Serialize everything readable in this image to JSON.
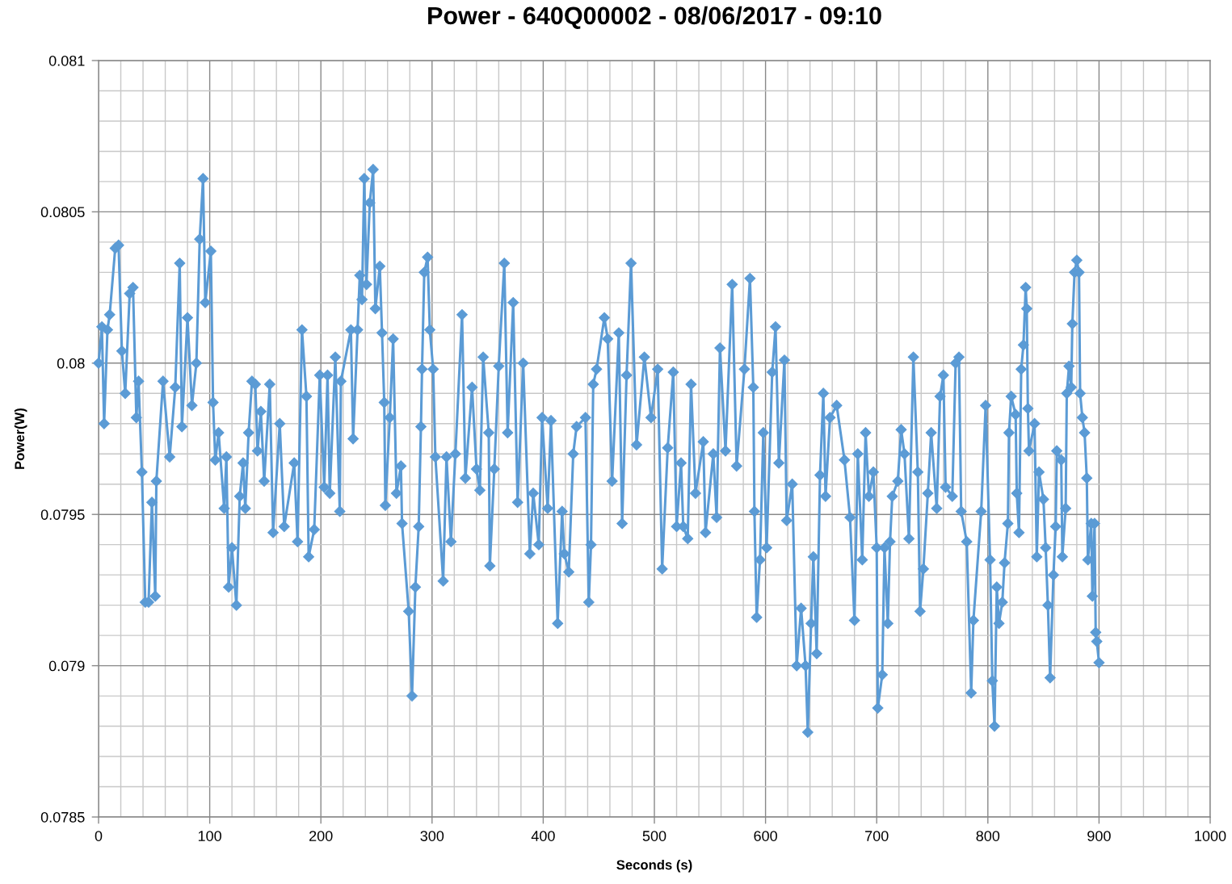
{
  "chart_data": {
    "type": "line",
    "title": "Power - 640Q00002 - 08/06/2017 - 09:10",
    "xlabel": "Seconds (s)",
    "ylabel": "Power(W)",
    "x": [
      0,
      3,
      5,
      8,
      10,
      15,
      18,
      21,
      24,
      28,
      31,
      34,
      36,
      39,
      42,
      45,
      48,
      51,
      52,
      58,
      64,
      69,
      73,
      75,
      80,
      84,
      88,
      91,
      94,
      96,
      101,
      103,
      105,
      108,
      113,
      115,
      117,
      120,
      124,
      127,
      130,
      132,
      135,
      138,
      141,
      143,
      146,
      149,
      154,
      157,
      163,
      167,
      176,
      179,
      183,
      187,
      189,
      194,
      199,
      203,
      206,
      208,
      213,
      217,
      218,
      227,
      229,
      233,
      235,
      237,
      239,
      241,
      244,
      247,
      249,
      253,
      255,
      257,
      258,
      262,
      265,
      268,
      272,
      273,
      279,
      282,
      285,
      288,
      290,
      291,
      293,
      296,
      298,
      301,
      303,
      310,
      313,
      317,
      321,
      327,
      330,
      336,
      340,
      343,
      346,
      351,
      352,
      356,
      360,
      365,
      368,
      373,
      377,
      382,
      388,
      391,
      396,
      399,
      404,
      407,
      413,
      417,
      419,
      423,
      427,
      430,
      438,
      441,
      443,
      445,
      448,
      455,
      458,
      462,
      468,
      471,
      475,
      479,
      484,
      491,
      497,
      503,
      507,
      512,
      517,
      520,
      524,
      526,
      530,
      533,
      537,
      544,
      546,
      553,
      556,
      559,
      564,
      570,
      574,
      581,
      586,
      589,
      590,
      592,
      595,
      598,
      601,
      606,
      609,
      612,
      617,
      619,
      624,
      628,
      632,
      636,
      638,
      641,
      643,
      646,
      649,
      652,
      654,
      658,
      664,
      671,
      676,
      680,
      683,
      687,
      690,
      693,
      697,
      700,
      701,
      705,
      707,
      710,
      712,
      714,
      719,
      722,
      725,
      729,
      733,
      737,
      739,
      742,
      746,
      749,
      754,
      757,
      760,
      762,
      768,
      771,
      774,
      776,
      781,
      785,
      787,
      794,
      798,
      802,
      804,
      806,
      808,
      810,
      813,
      815,
      818,
      819,
      821,
      825,
      826,
      828,
      830,
      832,
      834,
      835,
      836,
      837,
      842,
      844,
      846,
      850,
      852,
      854,
      856,
      859,
      861,
      862,
      866,
      867,
      870,
      871,
      873,
      875,
      876,
      878,
      880,
      882,
      883,
      885,
      887,
      889,
      890,
      893,
      894,
      896,
      897,
      898,
      900
    ],
    "series": [
      {
        "color": "#5b9bd5",
        "marker": "diamond",
        "line_style": "solid",
        "values": [
          0.08,
          0.08012,
          0.0798,
          0.08011,
          0.08016,
          0.08038,
          0.08039,
          0.08004,
          0.0799,
          0.08023,
          0.08025,
          0.07982,
          0.07994,
          0.07964,
          0.07921,
          0.07921,
          0.07954,
          0.07923,
          0.07961,
          0.07994,
          0.07969,
          0.07992,
          0.08033,
          0.07979,
          0.08015,
          0.07986,
          0.08,
          0.08041,
          0.08061,
          0.0802,
          0.08037,
          0.07987,
          0.07968,
          0.07977,
          0.07952,
          0.07969,
          0.07926,
          0.07939,
          0.0792,
          0.07956,
          0.07967,
          0.07952,
          0.07977,
          0.07994,
          0.07993,
          0.07971,
          0.07984,
          0.07961,
          0.07993,
          0.07944,
          0.0798,
          0.07946,
          0.07967,
          0.07941,
          0.08011,
          0.07989,
          0.07936,
          0.07945,
          0.07996,
          0.07959,
          0.07996,
          0.07957,
          0.08002,
          0.07951,
          0.07994,
          0.08011,
          0.07975,
          0.08011,
          0.08029,
          0.08021,
          0.08061,
          0.08026,
          0.08053,
          0.08064,
          0.08018,
          0.08032,
          0.0801,
          0.07987,
          0.07953,
          0.07982,
          0.08008,
          0.07957,
          0.07966,
          0.07947,
          0.07918,
          0.0789,
          0.07926,
          0.07946,
          0.07979,
          0.07998,
          0.0803,
          0.08035,
          0.08011,
          0.07998,
          0.07969,
          0.07928,
          0.07969,
          0.07941,
          0.0797,
          0.08016,
          0.07962,
          0.07992,
          0.07965,
          0.07958,
          0.08002,
          0.07977,
          0.07933,
          0.07965,
          0.07999,
          0.08033,
          0.07977,
          0.0802,
          0.07954,
          0.08,
          0.07937,
          0.07957,
          0.0794,
          0.07982,
          0.07952,
          0.07981,
          0.07914,
          0.07951,
          0.07937,
          0.07931,
          0.0797,
          0.07979,
          0.07982,
          0.07921,
          0.0794,
          0.07993,
          0.07998,
          0.08015,
          0.08008,
          0.07961,
          0.0801,
          0.07947,
          0.07996,
          0.08033,
          0.07973,
          0.08002,
          0.07982,
          0.07998,
          0.07932,
          0.07972,
          0.07997,
          0.07946,
          0.07967,
          0.07946,
          0.07942,
          0.07993,
          0.07957,
          0.07974,
          0.07944,
          0.0797,
          0.07949,
          0.08005,
          0.07971,
          0.08026,
          0.07966,
          0.07998,
          0.08028,
          0.07992,
          0.07951,
          0.07916,
          0.07935,
          0.07977,
          0.07939,
          0.07997,
          0.08012,
          0.07967,
          0.08001,
          0.07948,
          0.0796,
          0.079,
          0.07919,
          0.079,
          0.07878,
          0.07914,
          0.07936,
          0.07904,
          0.07963,
          0.0799,
          0.07956,
          0.07982,
          0.07986,
          0.07968,
          0.07949,
          0.07915,
          0.0797,
          0.07935,
          0.07977,
          0.07956,
          0.07964,
          0.07939,
          0.07886,
          0.07897,
          0.07939,
          0.07914,
          0.07941,
          0.07956,
          0.07961,
          0.07978,
          0.0797,
          0.07942,
          0.08002,
          0.07964,
          0.07918,
          0.07932,
          0.07957,
          0.07977,
          0.07952,
          0.07989,
          0.07996,
          0.07959,
          0.07956,
          0.08,
          0.08002,
          0.07951,
          0.07941,
          0.07891,
          0.07915,
          0.07951,
          0.07986,
          0.07935,
          0.07895,
          0.0788,
          0.07926,
          0.07914,
          0.07921,
          0.07934,
          0.07947,
          0.07977,
          0.07989,
          0.07983,
          0.07957,
          0.07944,
          0.07998,
          0.08006,
          0.08025,
          0.08018,
          0.07985,
          0.07971,
          0.0798,
          0.07936,
          0.07964,
          0.07955,
          0.07939,
          0.0792,
          0.07896,
          0.0793,
          0.07946,
          0.07971,
          0.07968,
          0.07936,
          0.07952,
          0.0799,
          0.07999,
          0.07992,
          0.08013,
          0.0803,
          0.08034,
          0.0803,
          0.0799,
          0.07982,
          0.07977,
          0.07962,
          0.07935,
          0.07947,
          0.07923,
          0.07947,
          0.07911,
          0.07908,
          0.07901
        ]
      }
    ],
    "xlim": [
      0,
      1000
    ],
    "xticks": [
      0,
      {
        "value": 20,
        "label": null
      },
      {
        "value": 40,
        "label": null
      },
      {
        "value": 60,
        "label": null
      },
      {
        "value": 80,
        "label": null
      },
      100,
      {
        "value": 120,
        "label": null
      },
      {
        "value": 140,
        "label": null
      },
      {
        "value": 160,
        "label": null
      },
      {
        "value": 180,
        "label": null
      },
      200,
      {
        "value": 220,
        "label": null
      },
      {
        "value": 240,
        "label": null
      },
      {
        "value": 260,
        "label": null
      },
      {
        "value": 280,
        "label": null
      },
      300,
      {
        "value": 320,
        "label": null
      },
      {
        "value": 340,
        "label": null
      },
      {
        "value": 360,
        "label": null
      },
      {
        "value": 380,
        "label": null
      },
      400,
      {
        "value": 420,
        "label": null
      },
      {
        "value": 440,
        "label": null
      },
      {
        "value": 460,
        "label": null
      },
      {
        "value": 480,
        "label": null
      },
      500,
      {
        "value": 520,
        "label": null
      },
      {
        "value": 540,
        "label": null
      },
      {
        "value": 560,
        "label": null
      },
      {
        "value": 580,
        "label": null
      },
      600,
      {
        "value": 620,
        "label": null
      },
      {
        "value": 640,
        "label": null
      },
      {
        "value": 660,
        "label": null
      },
      {
        "value": 680,
        "label": null
      },
      700,
      {
        "value": 720,
        "label": null
      },
      {
        "value": 740,
        "label": null
      },
      {
        "value": 760,
        "label": null
      },
      {
        "value": 780,
        "label": null
      },
      800,
      {
        "value": 820,
        "label": null
      },
      {
        "value": 840,
        "label": null
      },
      {
        "value": 860,
        "label": null
      },
      {
        "value": 880,
        "label": null
      },
      900,
      {
        "value": 920,
        "label": null
      },
      {
        "value": 940,
        "label": null
      },
      {
        "value": 960,
        "label": null
      },
      {
        "value": 980,
        "label": null
      },
      1000
    ],
    "ylim": [
      0.0785,
      0.081
    ],
    "yticks": [
      0.0785,
      {
        "value": 0.0786,
        "label": null
      },
      {
        "value": 0.0787,
        "label": null
      },
      {
        "value": 0.0788,
        "label": null
      },
      {
        "value": 0.0789,
        "label": null
      },
      0.079,
      {
        "value": 0.0791,
        "label": null
      },
      {
        "value": 0.0792,
        "label": null
      },
      {
        "value": 0.0793,
        "label": null
      },
      {
        "value": 0.0794,
        "label": null
      },
      0.0795,
      {
        "value": 0.0796,
        "label": null
      },
      {
        "value": 0.0797,
        "label": null
      },
      {
        "value": 0.0798,
        "label": null
      },
      {
        "value": 0.0799,
        "label": null
      },
      0.08,
      {
        "value": 0.0801,
        "label": null
      },
      {
        "value": 0.0802,
        "label": null
      },
      {
        "value": 0.0803,
        "label": null
      },
      {
        "value": 0.0804,
        "label": null
      },
      0.0805,
      {
        "value": 0.0806,
        "label": null
      },
      {
        "value": 0.0807,
        "label": null
      },
      {
        "value": 0.0808,
        "label": null
      },
      {
        "value": 0.0809,
        "label": null
      },
      0.081
    ],
    "grid": true
  }
}
